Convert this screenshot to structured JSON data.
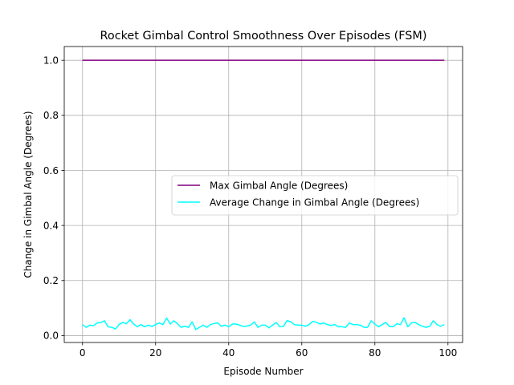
{
  "chart_data": {
    "type": "line",
    "title": "Rocket Gimbal Control Smoothness Over Episodes (FSM)",
    "xlabel": "Episode Number",
    "ylabel": "Change in Gimbal Angle (Degrees)",
    "xlim": [
      -5,
      104
    ],
    "ylim": [
      -0.025,
      1.05
    ],
    "xticks": [
      0,
      20,
      40,
      60,
      80,
      100
    ],
    "xtick_labels": [
      "0",
      "20",
      "40",
      "60",
      "80",
      "100"
    ],
    "yticks": [
      0.0,
      0.2,
      0.4,
      0.6,
      0.8,
      1.0
    ],
    "ytick_labels": [
      "0.0",
      "0.2",
      "0.4",
      "0.6",
      "0.8",
      "1.0"
    ],
    "grid": true,
    "legend_position": "center-right",
    "series": [
      {
        "name": "Max Gimbal Angle (Degrees)",
        "color": "#800080",
        "x_start": 0,
        "x_step": 1,
        "values": [
          1,
          1,
          1,
          1,
          1,
          1,
          1,
          1,
          1,
          1,
          1,
          1,
          1,
          1,
          1,
          1,
          1,
          1,
          1,
          1,
          1,
          1,
          1,
          1,
          1,
          1,
          1,
          1,
          1,
          1,
          1,
          1,
          1,
          1,
          1,
          1,
          1,
          1,
          1,
          1,
          1,
          1,
          1,
          1,
          1,
          1,
          1,
          1,
          1,
          1,
          1,
          1,
          1,
          1,
          1,
          1,
          1,
          1,
          1,
          1,
          1,
          1,
          1,
          1,
          1,
          1,
          1,
          1,
          1,
          1,
          1,
          1,
          1,
          1,
          1,
          1,
          1,
          1,
          1,
          1,
          1,
          1,
          1,
          1,
          1,
          1,
          1,
          1,
          1,
          1,
          1,
          1,
          1,
          1,
          1,
          1,
          1,
          1,
          1,
          1
        ]
      },
      {
        "name": "Average Change in Gimbal Angle (Degrees)",
        "color": "#00ffff",
        "x_start": 0,
        "x_step": 1,
        "values": [
          0.04,
          0.03,
          0.038,
          0.036,
          0.046,
          0.047,
          0.054,
          0.032,
          0.03,
          0.024,
          0.04,
          0.048,
          0.043,
          0.058,
          0.042,
          0.032,
          0.04,
          0.032,
          0.038,
          0.033,
          0.04,
          0.046,
          0.04,
          0.064,
          0.042,
          0.054,
          0.043,
          0.03,
          0.034,
          0.03,
          0.05,
          0.022,
          0.03,
          0.038,
          0.03,
          0.04,
          0.044,
          0.046,
          0.034,
          0.038,
          0.032,
          0.042,
          0.042,
          0.038,
          0.033,
          0.035,
          0.038,
          0.05,
          0.03,
          0.038,
          0.038,
          0.028,
          0.038,
          0.048,
          0.032,
          0.034,
          0.055,
          0.05,
          0.04,
          0.038,
          0.038,
          0.034,
          0.04,
          0.052,
          0.048,
          0.042,
          0.046,
          0.04,
          0.037,
          0.04,
          0.032,
          0.032,
          0.03,
          0.046,
          0.04,
          0.04,
          0.038,
          0.03,
          0.03,
          0.054,
          0.042,
          0.032,
          0.04,
          0.048,
          0.033,
          0.032,
          0.043,
          0.04,
          0.065,
          0.032,
          0.046,
          0.048,
          0.04,
          0.034,
          0.03,
          0.034,
          0.054,
          0.04,
          0.034,
          0.04
        ]
      }
    ]
  }
}
